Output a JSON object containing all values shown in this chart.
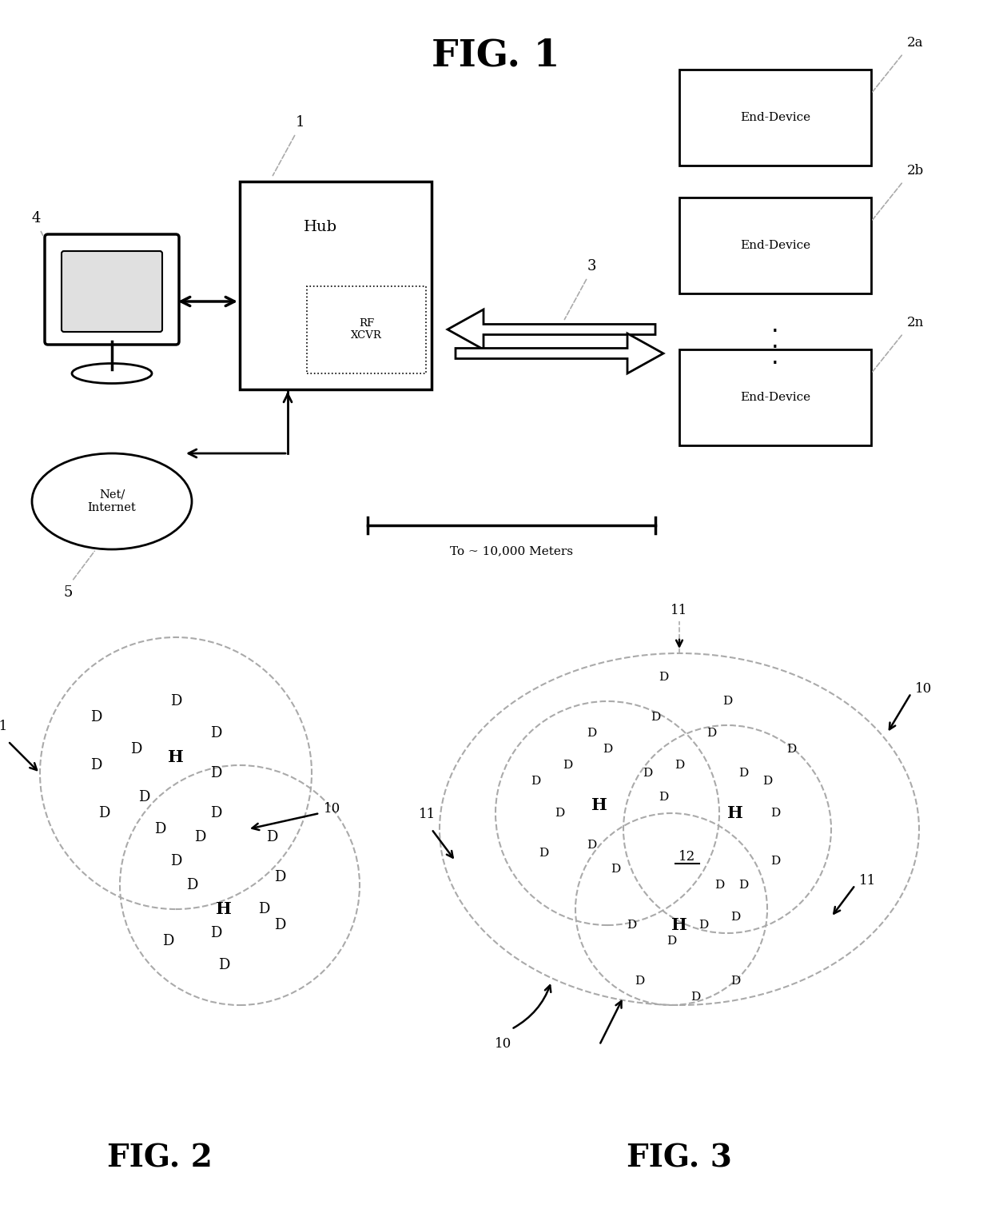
{
  "bg_color": "#ffffff",
  "lc": "#000000",
  "dc": "#aaaaaa",
  "fig1_title": "FIG. 1",
  "fig2_title": "FIG. 2",
  "fig3_title": "FIG. 3",
  "hub_label": "Hub",
  "rfxcvr_label": "RF\nXCVR",
  "end_device_label": "End-Device",
  "net_label": "Net/\nInternet",
  "scale_label": "To ~ 10,000 Meters"
}
